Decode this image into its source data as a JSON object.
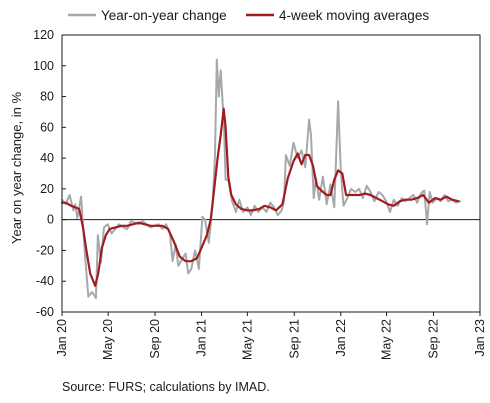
{
  "chart_data": {
    "type": "line",
    "ylabel": "Year on year change, in %",
    "ylim": [
      -60,
      120
    ],
    "yticks": [
      120,
      100,
      80,
      60,
      40,
      20,
      0,
      -20,
      -40,
      -60
    ],
    "xlim": [
      "2020-01-01",
      "2023-01-01"
    ],
    "xticks": [
      {
        "label": "Jan 20",
        "date": "2020-01-01"
      },
      {
        "label": "May 20",
        "date": "2020-05-01"
      },
      {
        "label": "Sep 20",
        "date": "2020-09-01"
      },
      {
        "label": "Jan 21",
        "date": "2021-01-01"
      },
      {
        "label": "May 21",
        "date": "2021-05-01"
      },
      {
        "label": "Sep 21",
        "date": "2021-09-01"
      },
      {
        "label": "Jan 22",
        "date": "2022-01-01"
      },
      {
        "label": "May 22",
        "date": "2022-05-01"
      },
      {
        "label": "Sep 22",
        "date": "2022-09-01"
      },
      {
        "label": "Jan 23",
        "date": "2023-01-01"
      }
    ],
    "legend_position": "top",
    "grid": false,
    "series": [
      {
        "name": "Year-on-year change",
        "color": "#a6a9ac",
        "points": [
          [
            "2020-01-01",
            13
          ],
          [
            "2020-01-11",
            10
          ],
          [
            "2020-01-21",
            16
          ],
          [
            "2020-01-31",
            6
          ],
          [
            "2020-02-05",
            10
          ],
          [
            "2020-02-10",
            1
          ],
          [
            "2020-02-20",
            15
          ],
          [
            "2020-03-01",
            -22
          ],
          [
            "2020-03-10",
            -50
          ],
          [
            "2020-03-20",
            -47
          ],
          [
            "2020-03-30",
            -51
          ],
          [
            "2020-04-04",
            -10
          ],
          [
            "2020-04-12",
            -28
          ],
          [
            "2020-04-20",
            -5
          ],
          [
            "2020-04-30",
            -3
          ],
          [
            "2020-05-10",
            -9
          ],
          [
            "2020-05-20",
            -6
          ],
          [
            "2020-05-30",
            -3
          ],
          [
            "2020-06-10",
            -5
          ],
          [
            "2020-06-20",
            -6
          ],
          [
            "2020-06-30",
            -1
          ],
          [
            "2020-07-10",
            -2
          ],
          [
            "2020-07-20",
            -3
          ],
          [
            "2020-07-30",
            -1
          ],
          [
            "2020-08-10",
            -3
          ],
          [
            "2020-08-20",
            -5
          ],
          [
            "2020-08-30",
            -4
          ],
          [
            "2020-09-10",
            -3
          ],
          [
            "2020-09-20",
            -6
          ],
          [
            "2020-09-30",
            -3
          ],
          [
            "2020-10-10",
            -9
          ],
          [
            "2020-10-17",
            -27
          ],
          [
            "2020-10-25",
            -16
          ],
          [
            "2020-11-01",
            -30
          ],
          [
            "2020-11-10",
            -26
          ],
          [
            "2020-11-20",
            -22
          ],
          [
            "2020-11-27",
            -35
          ],
          [
            "2020-12-05",
            -32
          ],
          [
            "2020-12-15",
            -20
          ],
          [
            "2020-12-25",
            -32
          ],
          [
            "2021-01-03",
            2
          ],
          [
            "2021-01-10",
            0
          ],
          [
            "2021-01-20",
            -15
          ],
          [
            "2021-01-30",
            10
          ],
          [
            "2021-02-05",
            40
          ],
          [
            "2021-02-10",
            104
          ],
          [
            "2021-02-15",
            80
          ],
          [
            "2021-02-20",
            97
          ],
          [
            "2021-03-01",
            60
          ],
          [
            "2021-03-05",
            26
          ],
          [
            "2021-03-12",
            26
          ],
          [
            "2021-03-22",
            12
          ],
          [
            "2021-04-01",
            5
          ],
          [
            "2021-04-10",
            13
          ],
          [
            "2021-04-20",
            5
          ],
          [
            "2021-05-01",
            8
          ],
          [
            "2021-05-10",
            3
          ],
          [
            "2021-05-20",
            9
          ],
          [
            "2021-05-30",
            5
          ],
          [
            "2021-06-10",
            8
          ],
          [
            "2021-06-20",
            5
          ],
          [
            "2021-06-30",
            11
          ],
          [
            "2021-07-10",
            8
          ],
          [
            "2021-07-20",
            3
          ],
          [
            "2021-07-30",
            6
          ],
          [
            "2021-08-05",
            12
          ],
          [
            "2021-08-10",
            42
          ],
          [
            "2021-08-20",
            35
          ],
          [
            "2021-08-30",
            50
          ],
          [
            "2021-09-10",
            40
          ],
          [
            "2021-09-20",
            45
          ],
          [
            "2021-09-30",
            34
          ],
          [
            "2021-10-10",
            65
          ],
          [
            "2021-10-15",
            55
          ],
          [
            "2021-10-22",
            14
          ],
          [
            "2021-10-28",
            27
          ],
          [
            "2021-11-05",
            13
          ],
          [
            "2021-11-15",
            28
          ],
          [
            "2021-11-25",
            10
          ],
          [
            "2021-12-05",
            23
          ],
          [
            "2021-12-15",
            8
          ],
          [
            "2021-12-25",
            77
          ],
          [
            "2022-01-01",
            32
          ],
          [
            "2022-01-08",
            9
          ],
          [
            "2022-01-18",
            14
          ],
          [
            "2022-01-28",
            20
          ],
          [
            "2022-02-08",
            18
          ],
          [
            "2022-02-18",
            20
          ],
          [
            "2022-02-28",
            14
          ],
          [
            "2022-03-10",
            22
          ],
          [
            "2022-03-20",
            18
          ],
          [
            "2022-03-30",
            12
          ],
          [
            "2022-04-10",
            18
          ],
          [
            "2022-04-20",
            16
          ],
          [
            "2022-04-30",
            12
          ],
          [
            "2022-05-10",
            5
          ],
          [
            "2022-05-20",
            13
          ],
          [
            "2022-05-30",
            9
          ],
          [
            "2022-06-10",
            14
          ],
          [
            "2022-06-20",
            12
          ],
          [
            "2022-06-30",
            14
          ],
          [
            "2022-07-10",
            16
          ],
          [
            "2022-07-20",
            11
          ],
          [
            "2022-07-30",
            17
          ],
          [
            "2022-08-08",
            19
          ],
          [
            "2022-08-15",
            -3
          ],
          [
            "2022-08-22",
            18
          ],
          [
            "2022-08-30",
            11
          ],
          [
            "2022-09-10",
            14
          ],
          [
            "2022-09-20",
            12
          ],
          [
            "2022-09-30",
            16
          ],
          [
            "2022-10-10",
            12
          ],
          [
            "2022-10-20",
            13
          ],
          [
            "2022-10-30",
            11
          ],
          [
            "2022-11-10",
            12
          ]
        ]
      },
      {
        "name": "4-week moving averages",
        "color": "#a01c1e",
        "points": [
          [
            "2020-01-01",
            11
          ],
          [
            "2020-01-11",
            11
          ],
          [
            "2020-01-25",
            9
          ],
          [
            "2020-02-05",
            8
          ],
          [
            "2020-02-15",
            7
          ],
          [
            "2020-02-25",
            -5
          ],
          [
            "2020-03-05",
            -20
          ],
          [
            "2020-03-15",
            -35
          ],
          [
            "2020-03-28",
            -43
          ],
          [
            "2020-04-05",
            -35
          ],
          [
            "2020-04-15",
            -18
          ],
          [
            "2020-04-25",
            -10
          ],
          [
            "2020-05-05",
            -6
          ],
          [
            "2020-05-20",
            -5
          ],
          [
            "2020-06-05",
            -4
          ],
          [
            "2020-06-20",
            -4
          ],
          [
            "2020-07-05",
            -3
          ],
          [
            "2020-07-20",
            -2
          ],
          [
            "2020-08-05",
            -3
          ],
          [
            "2020-08-20",
            -4
          ],
          [
            "2020-09-05",
            -4
          ],
          [
            "2020-09-20",
            -4
          ],
          [
            "2020-10-05",
            -6
          ],
          [
            "2020-10-20",
            -14
          ],
          [
            "2020-11-05",
            -24
          ],
          [
            "2020-11-20",
            -27
          ],
          [
            "2020-12-05",
            -27
          ],
          [
            "2020-12-20",
            -25
          ],
          [
            "2021-01-03",
            -17
          ],
          [
            "2021-01-15",
            -10
          ],
          [
            "2021-01-25",
            0
          ],
          [
            "2021-02-03",
            20
          ],
          [
            "2021-02-12",
            40
          ],
          [
            "2021-02-20",
            55
          ],
          [
            "2021-02-28",
            72
          ],
          [
            "2021-03-05",
            60
          ],
          [
            "2021-03-12",
            28
          ],
          [
            "2021-03-20",
            16
          ],
          [
            "2021-04-01",
            10
          ],
          [
            "2021-04-15",
            7
          ],
          [
            "2021-05-01",
            6
          ],
          [
            "2021-05-15",
            6
          ],
          [
            "2021-06-01",
            7
          ],
          [
            "2021-06-15",
            9
          ],
          [
            "2021-07-01",
            8
          ],
          [
            "2021-07-15",
            6
          ],
          [
            "2021-08-01",
            10
          ],
          [
            "2021-08-15",
            27
          ],
          [
            "2021-08-30",
            38
          ],
          [
            "2021-09-10",
            43
          ],
          [
            "2021-09-20",
            36
          ],
          [
            "2021-09-30",
            42
          ],
          [
            "2021-10-10",
            42
          ],
          [
            "2021-10-20",
            35
          ],
          [
            "2021-10-30",
            22
          ],
          [
            "2021-11-10",
            19
          ],
          [
            "2021-11-25",
            16
          ],
          [
            "2021-12-05",
            16
          ],
          [
            "2021-12-15",
            26
          ],
          [
            "2021-12-25",
            32
          ],
          [
            "2022-01-05",
            30
          ],
          [
            "2022-01-15",
            16
          ],
          [
            "2022-01-25",
            16
          ],
          [
            "2022-02-05",
            16
          ],
          [
            "2022-02-20",
            16
          ],
          [
            "2022-03-05",
            17
          ],
          [
            "2022-03-20",
            16
          ],
          [
            "2022-04-05",
            14
          ],
          [
            "2022-04-20",
            12
          ],
          [
            "2022-05-05",
            10
          ],
          [
            "2022-05-20",
            9
          ],
          [
            "2022-06-05",
            12
          ],
          [
            "2022-06-20",
            13
          ],
          [
            "2022-07-05",
            13
          ],
          [
            "2022-07-20",
            14
          ],
          [
            "2022-08-05",
            16
          ],
          [
            "2022-08-20",
            11
          ],
          [
            "2022-09-05",
            14
          ],
          [
            "2022-09-20",
            13
          ],
          [
            "2022-10-05",
            15
          ],
          [
            "2022-10-20",
            13
          ],
          [
            "2022-11-05",
            12
          ]
        ]
      }
    ]
  },
  "source_text": "Source: FURS; calculations by IMAD."
}
